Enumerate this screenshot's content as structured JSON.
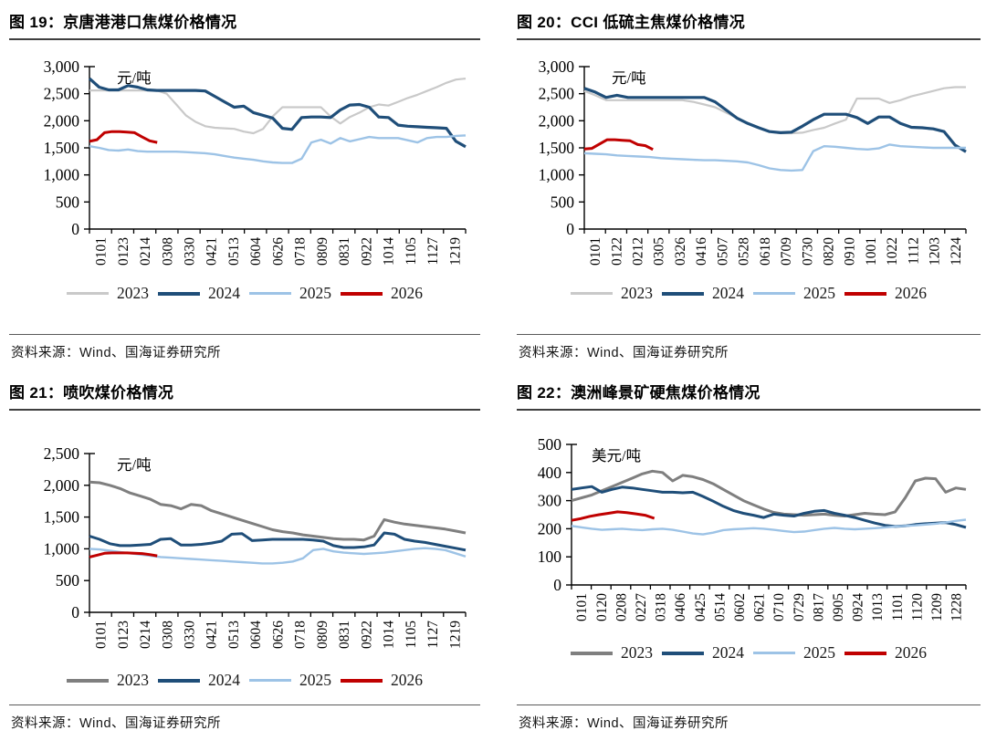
{
  "page": {
    "background": "#ffffff",
    "source_note": "资料来源：Wind、国海证券研究所"
  },
  "palette": {
    "y2023_light": "#c9c9c9",
    "y2023_dark": "#7f7f7f",
    "y2024": "#1f4e79",
    "y2025": "#9dc3e6",
    "y2026": "#c00000",
    "axis": "#000000"
  },
  "chart_data": [
    {
      "type": "line",
      "grid": false,
      "legend_position": "bottom",
      "title": "图 19：京唐港港口焦煤价格情况",
      "unit": "元/吨",
      "source": "资料来源：Wind、国海证券研究所",
      "ylim": [
        0,
        3000
      ],
      "y_ticks": [
        "3,000",
        "2,500",
        "2,000",
        "1,500",
        "1,000",
        "500",
        "0"
      ],
      "x_tick_labels": [
        "0101",
        "0123",
        "0214",
        "0308",
        "0330",
        "0421",
        "0513",
        "0604",
        "0626",
        "0718",
        "0809",
        "0831",
        "0922",
        "1014",
        "1105",
        "1127",
        "1219"
      ],
      "series": [
        {
          "name": "2023",
          "color": "#c9c9c9",
          "width": 2.2,
          "x_end": 1,
          "values": [
            2560,
            2560,
            2560,
            2560,
            2560,
            2560,
            2560,
            2560,
            2500,
            2300,
            2100,
            1980,
            1900,
            1870,
            1860,
            1850,
            1800,
            1770,
            1850,
            2080,
            2250,
            2250,
            2250,
            2250,
            2250,
            2080,
            1950,
            2070,
            2150,
            2250,
            2300,
            2280,
            2350,
            2420,
            2480,
            2550,
            2620,
            2700,
            2760,
            2780
          ]
        },
        {
          "name": "2024",
          "color": "#1f4e79",
          "width": 3.2,
          "x_end": 1,
          "values": [
            2780,
            2620,
            2570,
            2570,
            2650,
            2620,
            2570,
            2560,
            2560,
            2560,
            2560,
            2560,
            2550,
            2450,
            2350,
            2250,
            2270,
            2150,
            2100,
            2050,
            1860,
            1840,
            2060,
            2070,
            2070,
            2060,
            2200,
            2290,
            2300,
            2250,
            2070,
            2060,
            1920,
            1900,
            1890,
            1880,
            1870,
            1860,
            1620,
            1520
          ]
        },
        {
          "name": "2025",
          "color": "#9dc3e6",
          "width": 2.4,
          "x_end": 1,
          "values": [
            1530,
            1500,
            1460,
            1450,
            1470,
            1440,
            1430,
            1430,
            1430,
            1430,
            1420,
            1410,
            1400,
            1380,
            1350,
            1320,
            1300,
            1280,
            1250,
            1230,
            1220,
            1220,
            1300,
            1600,
            1650,
            1580,
            1680,
            1620,
            1660,
            1700,
            1680,
            1680,
            1680,
            1640,
            1600,
            1680,
            1700,
            1700,
            1720,
            1730
          ]
        },
        {
          "name": "2026",
          "color": "#c00000",
          "width": 3,
          "x_end": 0.18,
          "values": [
            1620,
            1650,
            1780,
            1800,
            1800,
            1790,
            1780,
            1700,
            1630,
            1600
          ]
        }
      ]
    },
    {
      "type": "line",
      "grid": false,
      "legend_position": "bottom",
      "title": "图 20：CCI 低硫主焦煤价格情况",
      "unit": "元/吨",
      "source": "资料来源：Wind、国海证券研究所",
      "ylim": [
        0,
        3000
      ],
      "y_ticks": [
        "3,000",
        "2,500",
        "2,000",
        "1,500",
        "1,000",
        "500",
        "0"
      ],
      "x_tick_labels": [
        "0101",
        "0122",
        "0212",
        "0305",
        "0326",
        "0416",
        "0507",
        "0528",
        "0618",
        "0709",
        "0730",
        "0820",
        "0910",
        "1001",
        "1022",
        "1112",
        "1203",
        "1224"
      ],
      "series": [
        {
          "name": "2023",
          "color": "#c9c9c9",
          "width": 2.2,
          "x_end": 1,
          "values": [
            2550,
            2470,
            2380,
            2380,
            2380,
            2380,
            2380,
            2380,
            2380,
            2380,
            2350,
            2300,
            2250,
            2150,
            2050,
            1950,
            1870,
            1800,
            1770,
            1770,
            1780,
            1830,
            1870,
            1950,
            2020,
            2410,
            2410,
            2410,
            2330,
            2380,
            2450,
            2500,
            2550,
            2600,
            2620,
            2620
          ]
        },
        {
          "name": "2024",
          "color": "#1f4e79",
          "width": 3.2,
          "x_end": 1,
          "values": [
            2600,
            2530,
            2430,
            2470,
            2430,
            2430,
            2430,
            2430,
            2430,
            2430,
            2430,
            2430,
            2350,
            2200,
            2050,
            1950,
            1870,
            1800,
            1780,
            1790,
            1900,
            2020,
            2120,
            2120,
            2120,
            2060,
            1950,
            2070,
            2070,
            1950,
            1880,
            1870,
            1850,
            1800,
            1550,
            1430
          ]
        },
        {
          "name": "2025",
          "color": "#9dc3e6",
          "width": 2.4,
          "x_end": 1,
          "values": [
            1400,
            1390,
            1380,
            1360,
            1350,
            1340,
            1330,
            1310,
            1300,
            1290,
            1280,
            1270,
            1270,
            1260,
            1250,
            1230,
            1180,
            1120,
            1090,
            1080,
            1090,
            1440,
            1530,
            1520,
            1500,
            1480,
            1470,
            1490,
            1560,
            1530,
            1520,
            1510,
            1500,
            1500,
            1500,
            1500
          ]
        },
        {
          "name": "2026",
          "color": "#c00000",
          "width": 3,
          "x_end": 0.18,
          "values": [
            1480,
            1490,
            1570,
            1650,
            1650,
            1640,
            1630,
            1560,
            1540,
            1470
          ]
        }
      ]
    },
    {
      "type": "line",
      "grid": false,
      "legend_position": "bottom",
      "title": "图 21：喷吹煤价格情况",
      "unit": "元/吨",
      "source": "资料来源：Wind、国海证券研究所",
      "ylim": [
        0,
        2500
      ],
      "y_ticks": [
        "2,500",
        "2,000",
        "1,500",
        "1,000",
        "500",
        "0"
      ],
      "x_tick_labels": [
        "0101",
        "0123",
        "0214",
        "0308",
        "0330",
        "0421",
        "0513",
        "0604",
        "0626",
        "0718",
        "0809",
        "0831",
        "0922",
        "1014",
        "1105",
        "1127",
        "1219"
      ],
      "series": [
        {
          "name": "2023",
          "color": "#7f7f7f",
          "width": 3,
          "x_end": 1,
          "values": [
            2050,
            2040,
            2000,
            1950,
            1880,
            1830,
            1780,
            1700,
            1680,
            1630,
            1700,
            1680,
            1600,
            1550,
            1500,
            1450,
            1400,
            1350,
            1300,
            1270,
            1250,
            1220,
            1200,
            1180,
            1160,
            1150,
            1150,
            1140,
            1200,
            1460,
            1420,
            1390,
            1370,
            1350,
            1330,
            1310,
            1280,
            1250
          ]
        },
        {
          "name": "2024",
          "color": "#1f4e79",
          "width": 3,
          "x_end": 1,
          "values": [
            1200,
            1150,
            1080,
            1050,
            1050,
            1060,
            1070,
            1150,
            1160,
            1060,
            1060,
            1070,
            1090,
            1120,
            1230,
            1240,
            1130,
            1140,
            1150,
            1150,
            1150,
            1150,
            1140,
            1120,
            1050,
            1020,
            1020,
            1030,
            1060,
            1250,
            1230,
            1150,
            1120,
            1100,
            1070,
            1040,
            1010,
            980
          ]
        },
        {
          "name": "2025",
          "color": "#9dc3e6",
          "width": 2.4,
          "x_end": 1,
          "values": [
            1000,
            990,
            970,
            950,
            930,
            910,
            890,
            870,
            860,
            850,
            840,
            830,
            820,
            810,
            800,
            790,
            780,
            770,
            770,
            780,
            800,
            850,
            980,
            1000,
            960,
            940,
            930,
            920,
            930,
            940,
            960,
            980,
            1000,
            1010,
            1000,
            980,
            930,
            880
          ]
        },
        {
          "name": "2026",
          "color": "#c00000",
          "width": 3,
          "x_end": 0.18,
          "values": [
            870,
            900,
            930,
            935,
            935,
            935,
            930,
            925,
            910,
            890
          ]
        }
      ]
    },
    {
      "type": "line",
      "grid": false,
      "legend_position": "bottom",
      "title": "图 22：澳洲峰景矿硬焦煤价格情况",
      "unit": "美元/吨",
      "source": "资料来源：Wind、国海证券研究所",
      "ylim": [
        0,
        500
      ],
      "y_ticks": [
        "500",
        "400",
        "300",
        "200",
        "100",
        "0"
      ],
      "x_tick_labels": [
        "0101",
        "0120",
        "0208",
        "0227",
        "0318",
        "0406",
        "0425",
        "0514",
        "0602",
        "0621",
        "0710",
        "0729",
        "0817",
        "0905",
        "0924",
        "1013",
        "1101",
        "1120",
        "1209",
        "1228"
      ],
      "series": [
        {
          "name": "2023",
          "color": "#7f7f7f",
          "width": 3,
          "x_end": 1,
          "values": [
            300,
            310,
            320,
            335,
            350,
            365,
            380,
            395,
            405,
            400,
            370,
            390,
            385,
            375,
            360,
            340,
            320,
            300,
            285,
            270,
            258,
            252,
            250,
            248,
            250,
            252,
            248,
            245,
            250,
            255,
            252,
            250,
            260,
            310,
            370,
            380,
            378,
            330,
            345,
            340
          ]
        },
        {
          "name": "2024",
          "color": "#1f4e79",
          "width": 3,
          "x_end": 1,
          "values": [
            340,
            345,
            350,
            330,
            340,
            348,
            345,
            340,
            335,
            330,
            330,
            328,
            330,
            315,
            298,
            280,
            265,
            255,
            248,
            240,
            252,
            248,
            245,
            255,
            262,
            265,
            255,
            248,
            240,
            230,
            220,
            212,
            208,
            210,
            215,
            218,
            220,
            222,
            215,
            205
          ]
        },
        {
          "name": "2025",
          "color": "#9dc3e6",
          "width": 2.4,
          "x_end": 1,
          "values": [
            210,
            205,
            200,
            196,
            198,
            200,
            197,
            195,
            198,
            200,
            196,
            190,
            183,
            180,
            186,
            195,
            198,
            200,
            202,
            200,
            196,
            192,
            188,
            190,
            195,
            200,
            203,
            200,
            198,
            200,
            202,
            205,
            208,
            210,
            212,
            215,
            218,
            222,
            228,
            232
          ]
        },
        {
          "name": "2026",
          "color": "#c00000",
          "width": 3,
          "x_end": 0.21,
          "values": [
            230,
            236,
            244,
            250,
            255,
            260,
            257,
            253,
            248,
            237
          ]
        }
      ]
    }
  ]
}
